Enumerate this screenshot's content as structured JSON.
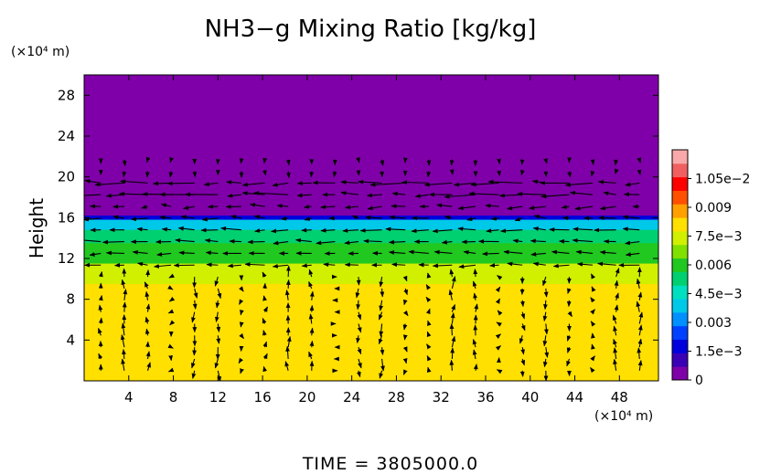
{
  "chart_data": {
    "type": "heatmap",
    "title": "NH3−g Mixing Ratio [kg/kg]",
    "ylabel": "Height",
    "x_unit": "(×10⁴ m)",
    "y_unit": "(×10⁴ m)",
    "x_ticks": [
      "4",
      "8",
      "12",
      "16",
      "20",
      "24",
      "28",
      "32",
      "36",
      "40",
      "44",
      "48"
    ],
    "x_tick_values": [
      4,
      8,
      12,
      16,
      20,
      24,
      28,
      32,
      36,
      40,
      44,
      48
    ],
    "y_ticks": [
      "4",
      "8",
      "12",
      "16",
      "20",
      "24",
      "28"
    ],
    "y_tick_values": [
      4,
      8,
      12,
      16,
      20,
      24,
      28
    ],
    "xlim": [
      0,
      51.5
    ],
    "ylim": [
      0,
      30
    ],
    "colorbar": {
      "labels": [
        "1.05e−2",
        "0.009",
        "7.5e−3",
        "0.006",
        "4.5e−3",
        "0.003",
        "1.5e−3",
        "0"
      ],
      "label_values": [
        0.0105,
        0.009,
        0.0075,
        0.006,
        0.0045,
        0.003,
        0.0015,
        0
      ],
      "range": [
        0,
        0.012
      ],
      "colors": [
        "#7f00a8",
        "#3a00b5",
        "#0000dd",
        "#0040ff",
        "#0090ff",
        "#00c8e8",
        "#00e0c0",
        "#00d070",
        "#20c820",
        "#80e000",
        "#d0f000",
        "#ffe000",
        "#ffa000",
        "#ff5000",
        "#ff0000",
        "#f06060",
        "#f8a8a8"
      ]
    },
    "field_layers": [
      {
        "y_range": [
          16.2,
          30
        ],
        "value": 0.0
      },
      {
        "y_range": [
          15.8,
          16.2
        ],
        "value": 0.002
      },
      {
        "y_range": [
          14.8,
          15.8
        ],
        "value": 0.0042
      },
      {
        "y_range": [
          13.5,
          14.8
        ],
        "value": 0.0052
      },
      {
        "y_range": [
          11.5,
          13.5
        ],
        "value": 0.0062
      },
      {
        "y_range": [
          9.5,
          11.5
        ],
        "value": 0.0072
      },
      {
        "y_range": [
          0,
          9.5
        ],
        "value": 0.0079
      }
    ],
    "vectors": "wind field arrows overlaid"
  },
  "footer": {
    "time_label": "TIME  =  3805000.0"
  }
}
